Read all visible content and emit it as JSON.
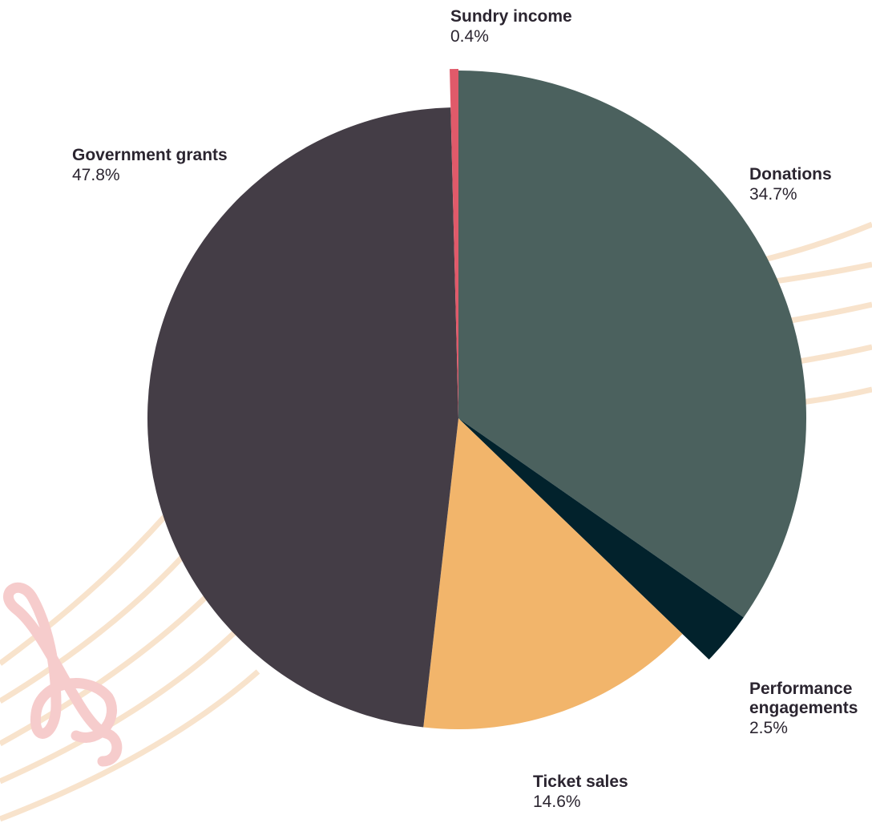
{
  "chart_data": {
    "type": "pie",
    "start_angle_deg": 0,
    "direction": "clockwise",
    "slices": [
      {
        "name": "Donations",
        "value_label": "34.7%",
        "value": 34.7,
        "color": "#4b615e",
        "exploded": true
      },
      {
        "name": "Performance engagements",
        "name_lines": [
          "Performance",
          "engagements"
        ],
        "value_label": "2.5%",
        "value": 2.5,
        "color": "#02222c",
        "exploded": true
      },
      {
        "name": "Ticket sales",
        "value_label": "14.6%",
        "value": 14.6,
        "color": "#f2b56b",
        "exploded": false
      },
      {
        "name": "Government grants",
        "value_label": "47.8%",
        "value": 47.8,
        "color": "#443d46",
        "exploded": false
      },
      {
        "name": "Sundry income",
        "value_label": "0.4%",
        "value": 0.4,
        "color": "#e05a6a",
        "exploded": true
      }
    ]
  },
  "decoration": {
    "staff_line_color": "#f8e3cc",
    "clef_color": "#f6cccc",
    "clef_icon": "treble-clef-icon"
  }
}
